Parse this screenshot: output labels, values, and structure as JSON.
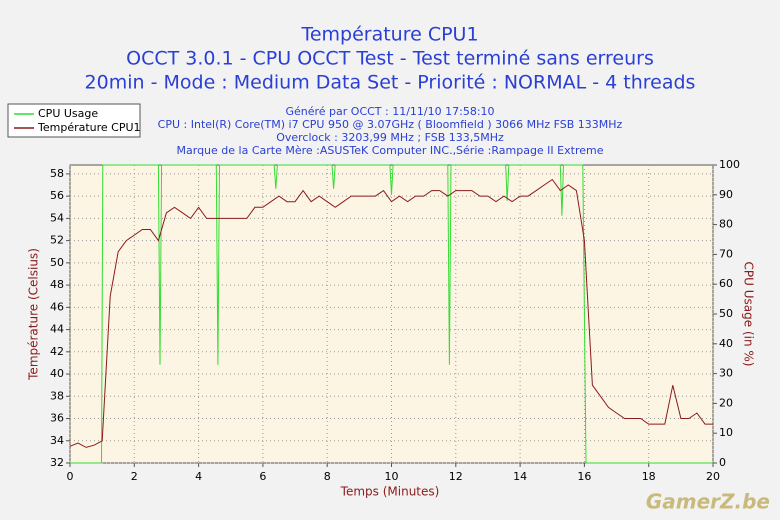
{
  "chart_data": {
    "type": "line",
    "title": "Température CPU1",
    "subtitle": [
      "OCCT 3.0.1 - CPU OCCT Test - Test terminé sans erreurs",
      "20min - Mode : Medium Data Set - Priorité : NORMAL - 4 threads"
    ],
    "info": [
      "Généré par OCCT : 11/11/10 17:58:10",
      "CPU : Intel(R) Core(TM) i7 CPU 950 @ 3.07GHz ( Bloomfield ) 3066 MHz FSB 133MHz",
      "Overclock : 3203,99 MHz ; FSB 133,5MHz",
      "Marque de la Carte Mère :ASUSTeK Computer INC.,Série :Rampage II Extreme"
    ],
    "xlabel": "Temps (Minutes)",
    "ylabel": "Température (Celsius)",
    "y2label": "CPU Usage (in %)",
    "watermark": "GamerZ.be",
    "xlim": [
      0,
      20
    ],
    "xticks": [
      0,
      2,
      4,
      6,
      8,
      10,
      12,
      14,
      16,
      18,
      20
    ],
    "ylim": [
      32,
      58.8
    ],
    "yticks": [
      32,
      34,
      36,
      38,
      40,
      42,
      44,
      46,
      48,
      50,
      52,
      54,
      56,
      58
    ],
    "y2lim": [
      0,
      100
    ],
    "y2ticks": [
      0,
      10,
      20,
      30,
      40,
      50,
      60,
      70,
      80,
      90,
      100
    ],
    "grid": true,
    "legend": "top-left",
    "series": [
      {
        "name": "CPU Usage",
        "color": "#33dd33",
        "axis": "y2",
        "x": [
          0,
          0.98,
          1.02,
          2.75,
          2.8,
          2.85,
          4.55,
          4.6,
          4.65,
          6.35,
          6.4,
          6.45,
          8.15,
          8.2,
          8.25,
          9.95,
          10,
          10.05,
          11.75,
          11.8,
          11.85,
          13.55,
          13.6,
          13.65,
          15.25,
          15.3,
          15.35,
          15.95,
          16.05,
          20
        ],
        "values": [
          0,
          0,
          100,
          100,
          33,
          100,
          100,
          33,
          100,
          100,
          92,
          100,
          100,
          92,
          100,
          100,
          90,
          100,
          100,
          33,
          100,
          100,
          88,
          100,
          100,
          83,
          100,
          100,
          0,
          0
        ]
      },
      {
        "name": "Température CPU1",
        "color": "#8b1a1a",
        "x": [
          0,
          0.25,
          0.5,
          0.75,
          1,
          1.25,
          1.5,
          1.75,
          2,
          2.25,
          2.5,
          2.75,
          3,
          3.25,
          3.5,
          3.75,
          4,
          4.25,
          4.5,
          4.75,
          5,
          5.25,
          5.5,
          5.75,
          6,
          6.25,
          6.5,
          6.75,
          7,
          7.25,
          7.5,
          7.75,
          8,
          8.25,
          8.5,
          8.75,
          9,
          9.25,
          9.5,
          9.75,
          10,
          10.25,
          10.5,
          10.75,
          11,
          11.25,
          11.5,
          11.75,
          12,
          12.25,
          12.5,
          12.75,
          13,
          13.25,
          13.5,
          13.75,
          14,
          14.25,
          14.5,
          14.75,
          15,
          15.25,
          15.5,
          15.75,
          16,
          16.25,
          16.5,
          16.75,
          17,
          17.25,
          17.5,
          17.75,
          18,
          18.25,
          18.5,
          18.75,
          19,
          19.25,
          19.5,
          19.75,
          20
        ],
        "values": [
          33.5,
          33.8,
          33.4,
          33.6,
          34,
          47,
          51,
          52,
          52.5,
          53,
          53,
          52,
          54.5,
          55,
          54.5,
          54,
          55,
          54,
          54,
          54,
          54,
          54,
          54,
          55,
          55,
          55.5,
          56,
          55.5,
          55.5,
          56.5,
          55.5,
          56,
          55.5,
          55,
          55.5,
          56,
          56,
          56,
          56,
          56.5,
          55.5,
          56,
          55.5,
          56,
          56,
          56.5,
          56.5,
          56,
          56.5,
          56.5,
          56.5,
          56,
          56,
          55.5,
          56,
          55.5,
          56,
          56,
          56.5,
          57,
          57.5,
          56.5,
          57,
          56.5,
          52,
          39,
          38,
          37,
          36.5,
          36,
          36,
          36,
          35.5,
          35.5,
          35.5,
          39,
          36,
          36,
          36.5,
          35.5,
          35.5
        ]
      }
    ]
  }
}
